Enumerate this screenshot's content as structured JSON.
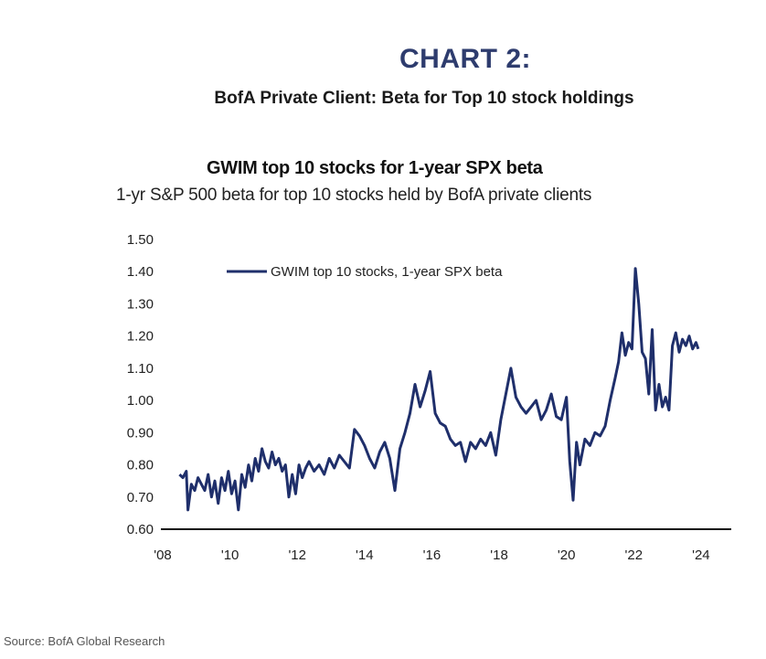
{
  "header": {
    "chart_number": "CHART 2:",
    "caption": "BofA Private Client: Beta for Top 10 stock holdings"
  },
  "footer": {
    "source": "Source: BofA Global Research"
  },
  "colors": {
    "accent": "#2e3c6e",
    "series": "#1f2f6b",
    "axis": "#111111"
  },
  "chart_data": {
    "type": "line",
    "title": "GWIM top 10 stocks for 1-year SPX beta",
    "subtitle": "1-yr S&P 500 beta for top 10 stocks held by BofA private clients",
    "xlabel": "",
    "ylabel": "",
    "ylim": [
      0.6,
      1.5
    ],
    "xlim": [
      2008,
      2024.9
    ],
    "grid": false,
    "legend_position": "top-left",
    "y_ticks": [
      "0.60",
      "0.70",
      "0.80",
      "0.90",
      "1.00",
      "1.10",
      "1.20",
      "1.30",
      "1.40",
      "1.50"
    ],
    "x_ticks": [
      {
        "value": 2008,
        "label": "'08"
      },
      {
        "value": 2010,
        "label": "'10"
      },
      {
        "value": 2012,
        "label": "'12"
      },
      {
        "value": 2014,
        "label": "'14"
      },
      {
        "value": 2016,
        "label": "'16"
      },
      {
        "value": 2018,
        "label": "'18"
      },
      {
        "value": 2020,
        "label": "'20"
      },
      {
        "value": 2022,
        "label": "'22"
      },
      {
        "value": 2024,
        "label": "'24"
      }
    ],
    "series": [
      {
        "name": "GWIM top 10 stocks, 1-year SPX beta",
        "x": [
          2008.5,
          2008.6,
          2008.7,
          2008.75,
          2008.85,
          2008.95,
          2009.05,
          2009.15,
          2009.25,
          2009.35,
          2009.45,
          2009.55,
          2009.65,
          2009.75,
          2009.85,
          2009.95,
          2010.05,
          2010.15,
          2010.25,
          2010.35,
          2010.45,
          2010.55,
          2010.65,
          2010.75,
          2010.85,
          2010.95,
          2011.05,
          2011.15,
          2011.25,
          2011.35,
          2011.45,
          2011.55,
          2011.65,
          2011.75,
          2011.85,
          2011.95,
          2012.05,
          2012.15,
          2012.25,
          2012.35,
          2012.5,
          2012.65,
          2012.8,
          2012.95,
          2013.1,
          2013.25,
          2013.4,
          2013.55,
          2013.7,
          2013.85,
          2014.0,
          2014.15,
          2014.3,
          2014.45,
          2014.6,
          2014.75,
          2014.9,
          2015.05,
          2015.2,
          2015.35,
          2015.5,
          2015.65,
          2015.8,
          2015.95,
          2016.1,
          2016.25,
          2016.4,
          2016.55,
          2016.7,
          2016.85,
          2017.0,
          2017.15,
          2017.3,
          2017.45,
          2017.6,
          2017.75,
          2017.9,
          2018.05,
          2018.2,
          2018.35,
          2018.5,
          2018.65,
          2018.8,
          2018.95,
          2019.1,
          2019.25,
          2019.4,
          2019.55,
          2019.7,
          2019.85,
          2020.0,
          2020.1,
          2020.2,
          2020.3,
          2020.4,
          2020.55,
          2020.7,
          2020.85,
          2021.0,
          2021.15,
          2021.3,
          2021.45,
          2021.55,
          2021.65,
          2021.75,
          2021.85,
          2021.95,
          2022.05,
          2022.15,
          2022.25,
          2022.35,
          2022.45,
          2022.55,
          2022.65,
          2022.75,
          2022.85,
          2022.95,
          2023.05,
          2023.15,
          2023.25,
          2023.35,
          2023.45,
          2023.55,
          2023.65,
          2023.75,
          2023.85,
          2023.92
        ],
        "values": [
          0.77,
          0.76,
          0.78,
          0.66,
          0.74,
          0.72,
          0.76,
          0.74,
          0.72,
          0.77,
          0.7,
          0.75,
          0.68,
          0.76,
          0.72,
          0.78,
          0.71,
          0.75,
          0.66,
          0.77,
          0.73,
          0.8,
          0.75,
          0.82,
          0.78,
          0.85,
          0.81,
          0.79,
          0.84,
          0.8,
          0.82,
          0.78,
          0.8,
          0.7,
          0.77,
          0.71,
          0.8,
          0.76,
          0.79,
          0.81,
          0.78,
          0.8,
          0.77,
          0.82,
          0.79,
          0.83,
          0.81,
          0.79,
          0.91,
          0.89,
          0.86,
          0.82,
          0.79,
          0.84,
          0.87,
          0.82,
          0.72,
          0.85,
          0.9,
          0.96,
          1.05,
          0.98,
          1.03,
          1.09,
          0.96,
          0.93,
          0.92,
          0.88,
          0.86,
          0.87,
          0.81,
          0.87,
          0.85,
          0.88,
          0.86,
          0.9,
          0.83,
          0.94,
          1.02,
          1.1,
          1.01,
          0.98,
          0.96,
          0.98,
          1.0,
          0.94,
          0.97,
          1.02,
          0.95,
          0.94,
          1.01,
          0.81,
          0.69,
          0.87,
          0.8,
          0.88,
          0.86,
          0.9,
          0.89,
          0.92,
          1.0,
          1.07,
          1.12,
          1.21,
          1.14,
          1.18,
          1.16,
          1.41,
          1.3,
          1.15,
          1.13,
          1.02,
          1.22,
          0.97,
          1.05,
          0.98,
          1.01,
          0.97,
          1.17,
          1.21,
          1.15,
          1.19,
          1.17,
          1.2,
          1.16,
          1.18,
          1.16
        ]
      }
    ]
  }
}
